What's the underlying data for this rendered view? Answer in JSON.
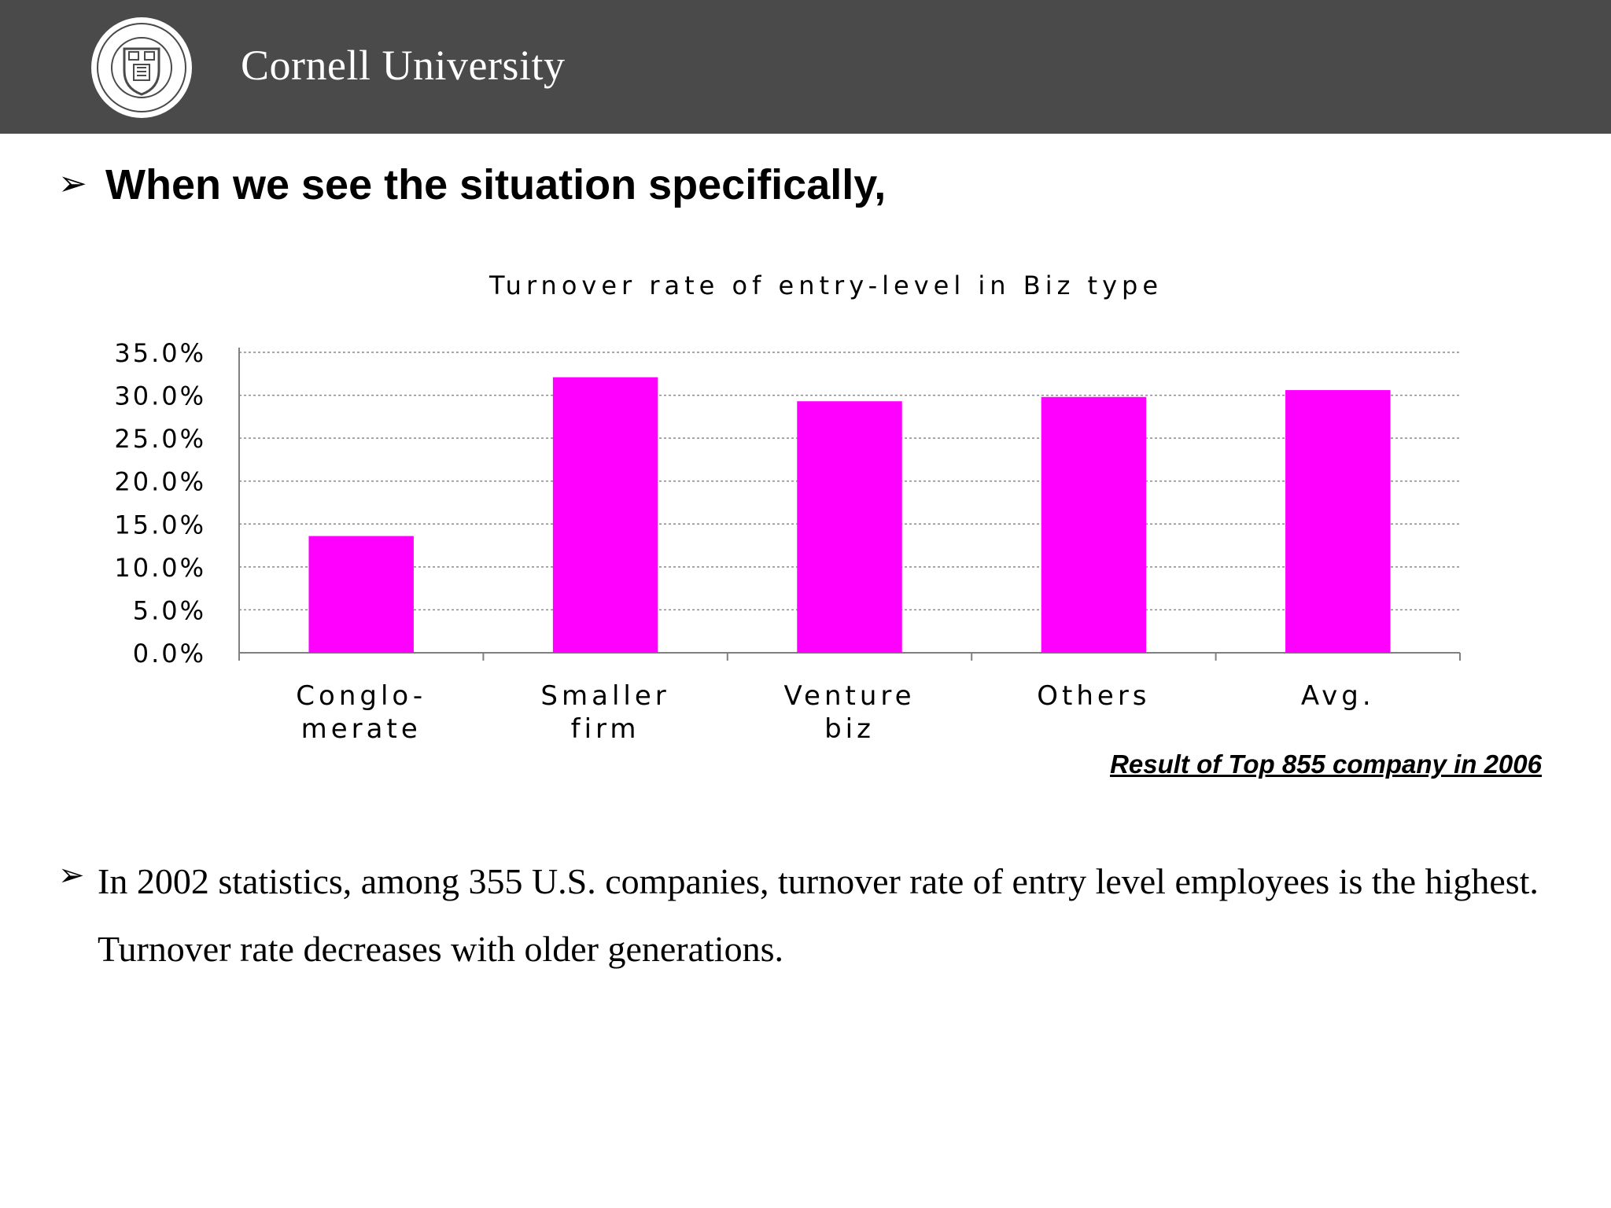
{
  "header": {
    "brand_name": "Cornell University",
    "logo": "cornell-university-seal",
    "background_color": "#4a4a4a"
  },
  "slide": {
    "heading": "When we see the situation specifically,",
    "source_note": "Result of  Top 855 company in 2006",
    "body_text": "In 2002 statistics, among 355 U.S. companies, turnover rate of entry level employees is the highest.  Turnover rate decreases with older generations."
  },
  "chart_data": {
    "type": "bar",
    "title": "Turnover rate of entry-level in Biz type",
    "categories": [
      [
        "Conglo-",
        "merate"
      ],
      [
        "Smaller",
        "firm"
      ],
      [
        "Venture",
        "biz"
      ],
      [
        "Others"
      ],
      [
        "Avg."
      ]
    ],
    "values": [
      13.6,
      32.1,
      29.3,
      29.8,
      30.6
    ],
    "ylim": [
      0,
      35
    ],
    "yticks": [
      "0.0%",
      "5.0%",
      "10.0%",
      "15.0%",
      "20.0%",
      "25.0%",
      "30.0%",
      "35.0%"
    ],
    "grid": true,
    "bar_color": "#ff00ff"
  }
}
